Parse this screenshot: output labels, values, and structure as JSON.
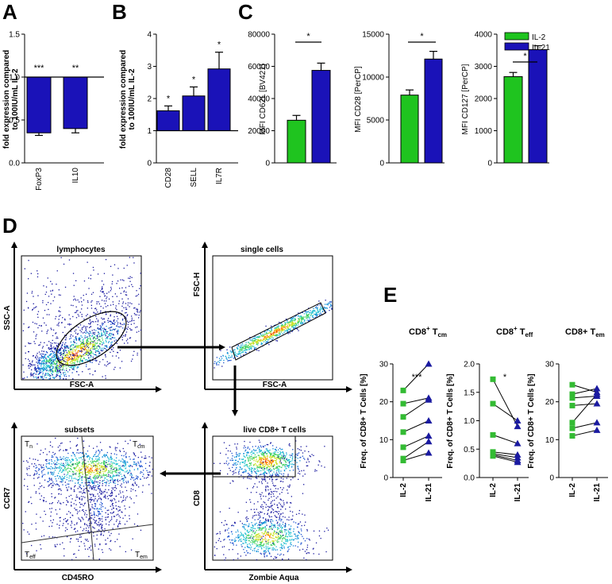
{
  "panels": {
    "A": "A",
    "B": "B",
    "C": "C",
    "D": "D",
    "E": "E"
  },
  "colors": {
    "il2": "#1fc41f",
    "il21": "#1a12b8",
    "marker_il2": "#33bb33",
    "marker_il21": "#1a1aa0"
  },
  "legend": {
    "il2": "IL-2",
    "il21": "IL-21"
  },
  "chart_data": [
    {
      "id": "A",
      "type": "bar",
      "ylabel_line1": "fold expression compared",
      "ylabel_line2": "to 100IU/mL IL-2",
      "categories": [
        "FoxP3",
        "IL10"
      ],
      "values": [
        0.35,
        0.4
      ],
      "errors": [
        0.03,
        0.05
      ],
      "baseline": 1.0,
      "ylim": [
        0,
        1.5
      ],
      "yticks": [
        "0.0",
        "0.5",
        "1.0",
        "1.5"
      ],
      "significance": [
        "***",
        "**"
      ]
    },
    {
      "id": "B",
      "type": "bar",
      "ylabel_line1": "fold expression compared",
      "ylabel_line2": "to 100IU/mL IL-2",
      "categories": [
        "CD28",
        "SELL",
        "IL7R"
      ],
      "values": [
        1.62,
        2.08,
        2.92
      ],
      "errors": [
        0.15,
        0.28,
        0.52
      ],
      "baseline": 1.0,
      "ylim": [
        0,
        4
      ],
      "yticks": [
        "0",
        "1",
        "2",
        "3",
        "4"
      ],
      "significance": [
        "*",
        "*",
        "*"
      ]
    },
    {
      "id": "C1",
      "type": "bar",
      "ylabel": "MFI CD62L [BV421]",
      "categories": [
        "IL-2",
        "IL-21"
      ],
      "values": [
        26500,
        57500
      ],
      "errors": [
        3000,
        4500
      ],
      "ylim": [
        0,
        80000
      ],
      "yticks": [
        "0",
        "20000",
        "40000",
        "60000",
        "80000"
      ],
      "significance": "*"
    },
    {
      "id": "C2",
      "type": "bar",
      "ylabel": "MFI CD28 [PerCP]",
      "categories": [
        "IL-2",
        "IL-21"
      ],
      "values": [
        7900,
        12100
      ],
      "errors": [
        600,
        900
      ],
      "ylim": [
        0,
        15000
      ],
      "yticks": [
        "0",
        "5000",
        "10000",
        "15000"
      ],
      "significance": "*"
    },
    {
      "id": "C3",
      "type": "bar",
      "ylabel": "MFI CD127 [PerCP]",
      "categories": [
        "IL-2",
        "IL-21"
      ],
      "values": [
        2680,
        3520
      ],
      "errors": [
        130,
        120
      ],
      "ylim": [
        0,
        4000
      ],
      "yticks": [
        "0",
        "1000",
        "2000",
        "3000",
        "4000"
      ],
      "significance": "*"
    },
    {
      "id": "E1",
      "type": "line",
      "title_main": "CD8",
      "title_sup": "+",
      "title_end": " T",
      "title_sub": "cm",
      "ylabel": "Freq. of CD8+ T Cells [%]",
      "categories": [
        "IL-2",
        "IL-21"
      ],
      "pairs": [
        [
          23,
          30
        ],
        [
          19.5,
          21
        ],
        [
          16,
          20.5
        ],
        [
          12,
          15
        ],
        [
          8,
          11
        ],
        [
          5,
          9.5
        ],
        [
          4.5,
          6.5
        ]
      ],
      "ylim": [
        0,
        30
      ],
      "yticks": [
        "0",
        "10",
        "20",
        "30"
      ],
      "significance": "***"
    },
    {
      "id": "E2",
      "type": "line",
      "title_main": "CD8",
      "title_sup": "+",
      "title_end": " T",
      "title_sub": "eff",
      "ylabel": "Freq. of CD8+ T Cells [%]",
      "categories": [
        "IL-2",
        "IL-21"
      ],
      "pairs": [
        [
          1.73,
          0.9
        ],
        [
          1.3,
          1.0
        ],
        [
          0.75,
          0.6
        ],
        [
          0.45,
          0.4
        ],
        [
          0.42,
          0.35
        ],
        [
          0.4,
          0.3
        ],
        [
          0.38,
          0.27
        ]
      ],
      "ylim": [
        0,
        2.0
      ],
      "yticks": [
        "0.0",
        "0.5",
        "1.0",
        "1.5",
        "2.0"
      ],
      "significance": "*"
    },
    {
      "id": "E3",
      "type": "line",
      "title_main": "CD8+ T",
      "title_sup": "",
      "title_end": "",
      "title_sub": "em",
      "ylabel": "Freq. of CD8+ T Cells [%]",
      "categories": [
        "IL-2",
        "IL-21"
      ],
      "pairs": [
        [
          24.5,
          22.5
        ],
        [
          22,
          23.5
        ],
        [
          21,
          21.5
        ],
        [
          19,
          19.5
        ],
        [
          14.5,
          22
        ],
        [
          13,
          14.5
        ],
        [
          11,
          12.5
        ]
      ],
      "ylim": [
        0,
        30
      ],
      "yticks": [
        "0",
        "10",
        "20",
        "30"
      ],
      "significance": ""
    }
  ],
  "flow": {
    "lymphocytes": {
      "title": "lymphocytes",
      "ylabel": "SSC-A",
      "xlabel": "FSC-A"
    },
    "single_cells": {
      "title": "single cells",
      "ylabel": "FSC-H",
      "xlabel": "FSC-A"
    },
    "subsets": {
      "title": "subsets",
      "ylabel": "CCR7",
      "xlabel": "CD45RO",
      "q_tn": "T",
      "q_tn_sub": "n",
      "q_tcm": "T",
      "q_tcm_sub": "cm",
      "q_teff": "T",
      "q_teff_sub": "eff",
      "q_tem": "T",
      "q_tem_sub": "em"
    },
    "live_cd8": {
      "title": "live CD8+ T cells",
      "ylabel": "CD8",
      "xlabel": "Zombie Aqua"
    }
  }
}
